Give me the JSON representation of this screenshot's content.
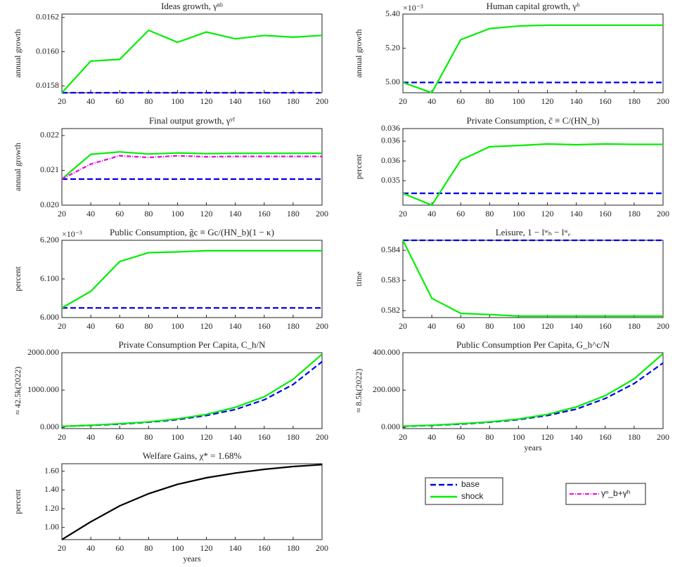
{
  "chart_data": [
    {
      "type": "line",
      "title": "Ideas growth, γⁿᵇ",
      "ylabel": "annual growth",
      "x": [
        20,
        40,
        60,
        80,
        100,
        120,
        140,
        160,
        180,
        200
      ],
      "xlim": [
        20,
        200
      ],
      "xticks": [
        20,
        40,
        60,
        80,
        100,
        120,
        140,
        160,
        180,
        200
      ],
      "ylim": [
        0.01576,
        0.01622
      ],
      "yticks": [
        0.0158,
        {
          "value": 0.016,
          "label": "0.0160"
        },
        0.0162
      ],
      "series": [
        {
          "name": "base",
          "color": "#0000ee",
          "linestyle": "dashed",
          "values": [
            0.01576,
            0.01576,
            0.01576,
            0.01576,
            0.01576,
            0.01576,
            0.01576,
            0.01576,
            0.01576,
            0.01576
          ]
        },
        {
          "name": "shock",
          "color": "#00ee00",
          "linestyle": "solid",
          "values": [
            0.01576,
            0.015945,
            0.015955,
            0.016125,
            0.016055,
            0.016115,
            0.016075,
            0.016095,
            0.016085,
            0.016095
          ]
        }
      ]
    },
    {
      "type": "line",
      "title": "Human capital growth, γʰ",
      "ylabel": "annual growth",
      "y_multiplier": "×10⁻³",
      "x": [
        20,
        40,
        60,
        80,
        100,
        120,
        140,
        160,
        180,
        200
      ],
      "xlim": [
        20,
        200
      ],
      "xticks": [
        20,
        40,
        60,
        80,
        100,
        120,
        140,
        160,
        180,
        200
      ],
      "ylim": [
        0.00494,
        0.0054
      ],
      "yticks": [
        {
          "value": 0.005,
          "label": "5.00"
        },
        {
          "value": 0.0052,
          "label": "5.20"
        },
        {
          "value": 0.0054,
          "label": "5.40"
        }
      ],
      "series": [
        {
          "name": "base",
          "color": "#0000ee",
          "linestyle": "dashed",
          "values": [
            0.005,
            0.005,
            0.005,
            0.005,
            0.005,
            0.005,
            0.005,
            0.005,
            0.005,
            0.005
          ]
        },
        {
          "name": "shock",
          "color": "#00ee00",
          "linestyle": "solid",
          "values": [
            0.005,
            0.00494,
            0.00525,
            0.005315,
            0.00533,
            0.005335,
            0.005335,
            0.005335,
            0.005335,
            0.005335
          ]
        }
      ]
    },
    {
      "type": "line",
      "title": "Final output growth, γʸᶠ",
      "ylabel": "annual growth",
      "x": [
        20,
        40,
        60,
        80,
        100,
        120,
        140,
        160,
        180,
        200
      ],
      "xlim": [
        20,
        200
      ],
      "xticks": [
        20,
        40,
        60,
        80,
        100,
        120,
        140,
        160,
        180,
        200
      ],
      "ylim": [
        0.02,
        0.0222
      ],
      "yticks": [
        {
          "value": 0.02,
          "label": "0.020"
        },
        0.021,
        0.022
      ],
      "series": [
        {
          "name": "base",
          "color": "#0000ee",
          "linestyle": "dashed",
          "values": [
            0.02075,
            0.02075,
            0.02075,
            0.02075,
            0.02075,
            0.02075,
            0.02075,
            0.02075,
            0.02075,
            0.02075
          ]
        },
        {
          "name": "shock",
          "color": "#00ee00",
          "linestyle": "solid",
          "values": [
            0.02075,
            0.02146,
            0.02153,
            0.02147,
            0.0215,
            0.02148,
            0.02149,
            0.02149,
            0.02149,
            0.02149
          ]
        },
        {
          "name": "γⁿ_b+γʰ",
          "color": "#ee00ee",
          "linestyle": "dashdot",
          "values": [
            0.02075,
            0.02118,
            0.02142,
            0.02137,
            0.02142,
            0.02139,
            0.0214,
            0.0214,
            0.0214,
            0.0214
          ]
        }
      ]
    },
    {
      "type": "line",
      "title": "Private Consumption, c̃ ≡ C/(HN_b)",
      "ylabel": "percent",
      "x": [
        20,
        40,
        60,
        80,
        100,
        120,
        140,
        160,
        180,
        200
      ],
      "xlim": [
        20,
        200
      ],
      "xticks": [
        20,
        40,
        60,
        80,
        100,
        120,
        140,
        160,
        180,
        200
      ],
      "ylim": [
        0.03438,
        0.03632
      ],
      "yticks": [
        0.035,
        {
          "value": 0.0355,
          "label": "0.036"
        },
        0.036,
        {
          "value": 0.03632,
          "label": "0.036"
        }
      ],
      "series": [
        {
          "name": "base",
          "color": "#0000ee",
          "linestyle": "dashed",
          "values": [
            0.03468,
            0.03468,
            0.03468,
            0.03468,
            0.03468,
            0.03468,
            0.03468,
            0.03468,
            0.03468,
            0.03468
          ]
        },
        {
          "name": "shock",
          "color": "#00ee00",
          "linestyle": "solid",
          "values": [
            0.03468,
            0.03438,
            0.03552,
            0.03586,
            0.03589,
            0.03593,
            0.03591,
            0.03593,
            0.03592,
            0.03592
          ]
        }
      ]
    },
    {
      "type": "line",
      "title": "Public Consumption, g̃c ≡ Gc/(HN_b)(1 − κ)",
      "ylabel": "percent",
      "y_multiplier": "×10⁻³",
      "x": [
        20,
        40,
        60,
        80,
        100,
        120,
        140,
        160,
        180,
        200
      ],
      "xlim": [
        20,
        200
      ],
      "xticks": [
        20,
        40,
        60,
        80,
        100,
        120,
        140,
        160,
        180,
        200
      ],
      "ylim": [
        0.006,
        0.0062
      ],
      "yticks": [
        {
          "value": 0.006,
          "label": "6.000"
        },
        {
          "value": 0.0061,
          "label": "6.100"
        },
        {
          "value": 0.0062,
          "label": "6.200"
        }
      ],
      "series": [
        {
          "name": "base",
          "color": "#0000ee",
          "linestyle": "dashed",
          "values": [
            0.006025,
            0.006025,
            0.006025,
            0.006025,
            0.006025,
            0.006025,
            0.006025,
            0.006025,
            0.006025,
            0.006025
          ]
        },
        {
          "name": "shock",
          "color": "#00ee00",
          "linestyle": "solid",
          "values": [
            0.006025,
            0.006068,
            0.006145,
            0.006168,
            0.00617,
            0.006173,
            0.006173,
            0.006173,
            0.006173,
            0.006173
          ]
        }
      ]
    },
    {
      "type": "line",
      "title": "Leisure, 1 − lʷₕ − lʷₑ",
      "ylabel": "time",
      "x": [
        20,
        40,
        60,
        80,
        100,
        120,
        140,
        160,
        180,
        200
      ],
      "xlim": [
        20,
        200
      ],
      "xticks": [
        20,
        40,
        60,
        80,
        100,
        120,
        140,
        160,
        180,
        200
      ],
      "ylim": [
        0.58177,
        0.58433
      ],
      "yticks": [
        0.582,
        0.583,
        0.584
      ],
      "series": [
        {
          "name": "base",
          "color": "#0000ee",
          "linestyle": "dashed",
          "values": [
            0.58433,
            0.58433,
            0.58433,
            0.58433,
            0.58433,
            0.58433,
            0.58433,
            0.58433,
            0.58433,
            0.58433
          ]
        },
        {
          "name": "shock",
          "color": "#00ee00",
          "linestyle": "solid",
          "values": [
            0.58433,
            0.58241,
            0.58191,
            0.58187,
            0.58182,
            0.58182,
            0.58182,
            0.58182,
            0.58182,
            0.58182
          ]
        }
      ]
    },
    {
      "type": "line",
      "title": "Private Consumption Per Capita, C_h/N",
      "ylabel": "≈ 42.5k(2022)",
      "x": [
        20,
        40,
        60,
        80,
        100,
        120,
        140,
        160,
        180,
        200
      ],
      "xlim": [
        20,
        200
      ],
      "xticks": [
        20,
        40,
        60,
        80,
        100,
        120,
        140,
        160,
        180,
        200
      ],
      "ylim": [
        -30,
        2000
      ],
      "yticks": [
        {
          "value": 0,
          "label": "0.000"
        },
        {
          "value": 1000,
          "label": "1000.000"
        },
        {
          "value": 2000,
          "label": "2000.000"
        }
      ],
      "series": [
        {
          "name": "base",
          "color": "#0000ee",
          "linestyle": "dashed",
          "values": [
            30,
            55,
            90,
            140,
            210,
            320,
            480,
            740,
            1150,
            1760
          ]
        },
        {
          "name": "shock",
          "color": "#00ee00",
          "linestyle": "solid",
          "values": [
            30,
            60,
            100,
            150,
            230,
            350,
            540,
            820,
            1290,
            1960
          ]
        }
      ]
    },
    {
      "type": "line",
      "title": "Public Consumption Per Capita, G_h^c/N",
      "ylabel": "≈ 8.5k(2022)",
      "xlabel": "years",
      "x": [
        20,
        40,
        60,
        80,
        100,
        120,
        140,
        160,
        180,
        200
      ],
      "xlim": [
        20,
        200
      ],
      "xticks": [
        20,
        40,
        60,
        80,
        100,
        120,
        140,
        160,
        180,
        200
      ],
      "ylim": [
        -6,
        400
      ],
      "yticks": [
        {
          "value": 0,
          "label": "0.000"
        },
        {
          "value": 200,
          "label": "200.000"
        },
        {
          "value": 400,
          "label": "400.000"
        }
      ],
      "series": [
        {
          "name": "base",
          "color": "#0000ee",
          "linestyle": "dashed",
          "values": [
            6,
            11,
            18,
            28,
            42,
            64,
            98,
            155,
            235,
            345
          ]
        },
        {
          "name": "shock",
          "color": "#00ee00",
          "linestyle": "solid",
          "values": [
            7,
            12,
            20,
            30,
            45,
            70,
            110,
            170,
            260,
            395
          ]
        }
      ]
    },
    {
      "type": "line",
      "title": "Welfare Gains, χ* = 1.68%",
      "ylabel": "percent",
      "xlabel": "years",
      "x": [
        20,
        40,
        60,
        80,
        100,
        120,
        140,
        160,
        180,
        200
      ],
      "xlim": [
        20,
        200
      ],
      "xticks": [
        20,
        40,
        60,
        80,
        100,
        120,
        140,
        160,
        180,
        200
      ],
      "ylim": [
        0.87,
        1.68
      ],
      "yticks": [
        {
          "value": 1,
          "label": "1.00"
        },
        {
          "value": 1.2,
          "label": "1.20"
        },
        {
          "value": 1.4,
          "label": "1.40"
        },
        {
          "value": 1.6,
          "label": "1.60"
        }
      ],
      "series": [
        {
          "color": "#000000",
          "linestyle": "solid",
          "values": [
            0.87,
            1.06,
            1.23,
            1.36,
            1.46,
            1.53,
            1.58,
            1.62,
            1.65,
            1.67
          ]
        }
      ]
    }
  ]
}
